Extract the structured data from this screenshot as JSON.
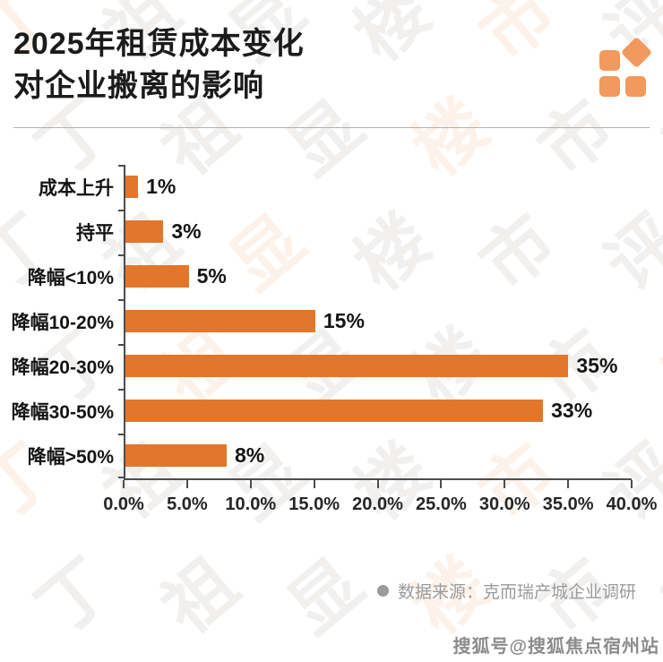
{
  "header": {
    "title_line1": "2025年租赁成本变化",
    "title_line2": "对企业搬离的影响"
  },
  "logo": {
    "color": "#F2995D"
  },
  "chart_data": {
    "type": "bar",
    "orientation": "horizontal",
    "title": "2025年租赁成本变化对企业搬离的影响",
    "categories": [
      "成本上升",
      "持平",
      "降幅<10%",
      "降幅10-20%",
      "降幅20-30%",
      "降幅30-50%",
      "降幅>50%"
    ],
    "values": [
      1,
      3,
      5,
      15,
      35,
      33,
      8
    ],
    "value_labels": [
      "1%",
      "3%",
      "5%",
      "15%",
      "35%",
      "33%",
      "8%"
    ],
    "x_ticks": [
      "0.0%",
      "5.0%",
      "10.0%",
      "15.0%",
      "20.0%",
      "25.0%",
      "30.0%",
      "35.0%",
      "40.0%"
    ],
    "xlim": [
      0,
      40
    ],
    "xlabel": "",
    "ylabel": "",
    "grid": false,
    "legend": "none",
    "bar_color": "#E2772B",
    "axis_color": "#4d4d4d"
  },
  "footer": {
    "source_text": "数据来源：克而瑞产城企业调研",
    "sohu_text": "搜狐号@搜狐焦点宿州站"
  },
  "watermark": {
    "chars": [
      "丁",
      "祖",
      "显",
      "楼",
      "市",
      "评"
    ],
    "gray": "rgba(190,186,182,0.22)",
    "orange": "rgba(242,152,90,0.13)"
  }
}
